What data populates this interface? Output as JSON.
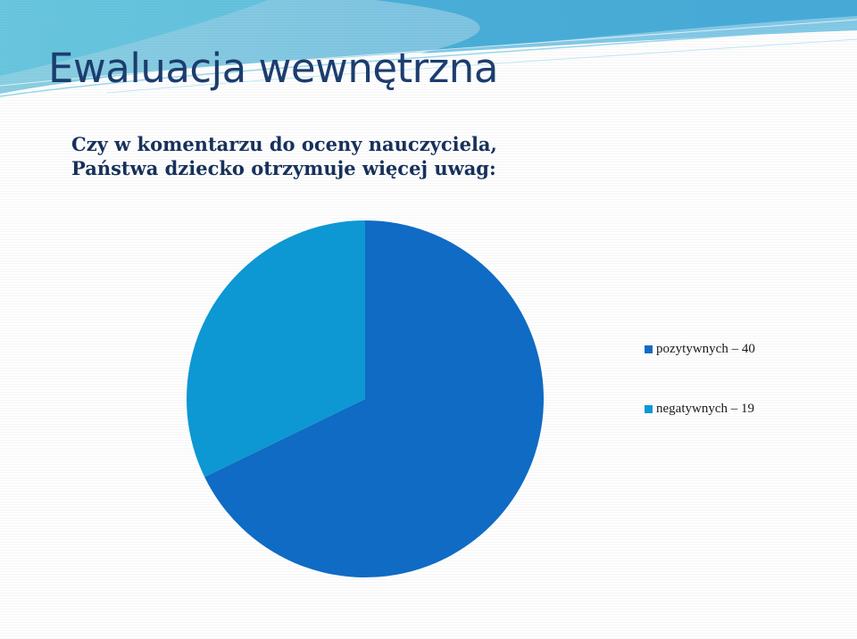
{
  "slide": {
    "title": "Ewaluacja wewnętrzna",
    "question": "Czy w komentarzu do oceny nauczyciela, Państwa dziecko otrzymuje więcej uwag:"
  },
  "colors": {
    "title": "#1c3d6e",
    "accent_dark": "#0f6bc4",
    "accent_light": "#0d97d3"
  },
  "chart_data": {
    "type": "pie",
    "categories": [
      "pozytywnych – 40",
      "negatywnych – 19"
    ],
    "values": [
      40,
      19
    ],
    "colors": [
      "#0f6bc4",
      "#0d97d3"
    ],
    "start_angle_deg": 0,
    "direction": "clockwise",
    "legend_position": "right"
  }
}
